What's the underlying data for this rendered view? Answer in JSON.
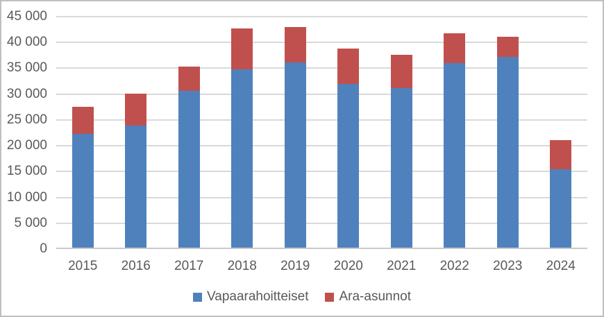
{
  "chart_data": {
    "type": "bar",
    "stacked": true,
    "title": "",
    "xlabel": "",
    "ylabel": "",
    "categories": [
      "2015",
      "2016",
      "2017",
      "2018",
      "2019",
      "2020",
      "2021",
      "2022",
      "2023",
      "2024"
    ],
    "series": [
      {
        "name": "Vapaarahoitteiset",
        "color": "#4F81BD",
        "values": [
          22000,
          23600,
          30300,
          34500,
          35900,
          31700,
          30900,
          35800,
          37000,
          15200
        ]
      },
      {
        "name": "Ara-asunnot",
        "color": "#C0504D",
        "values": [
          5300,
          6200,
          4800,
          7900,
          6800,
          6900,
          6400,
          5700,
          3900,
          5600
        ]
      }
    ],
    "totals": [
      27300,
      29800,
      35100,
      42400,
      42700,
      38600,
      37300,
      41500,
      40900,
      20800
    ],
    "ylim": [
      0,
      45000
    ],
    "ytick_interval": 5000,
    "ytick_labels": [
      "0",
      "5 000",
      "10 000",
      "15 000",
      "20 000",
      "25 000",
      "30 000",
      "35 000",
      "40 000",
      "45 000"
    ],
    "grid": true,
    "legend_position": "bottom",
    "colors": {
      "gridline": "#D9D9D9",
      "axis_line": "#C9C9C9",
      "text": "#595959",
      "background": "#FFFFFF",
      "border": "#BFBFBF"
    }
  }
}
